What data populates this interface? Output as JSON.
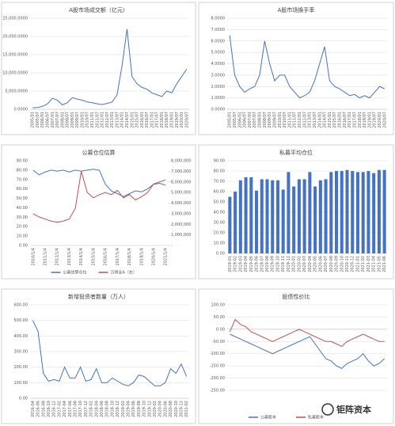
{
  "chart_data": [
    {
      "type": "line",
      "title": "A股市场成交额（亿元）",
      "color": "#4472c4",
      "categories": [
        "2005/01",
        "2005/07",
        "2006/01",
        "2006/07",
        "2007/01",
        "2007/07",
        "2008/01",
        "2008/07",
        "2009/01",
        "2009/07",
        "2010/01",
        "2010/07",
        "2011/01",
        "2011/07",
        "2012/01",
        "2012/07",
        "2013/01",
        "2013/07",
        "2014/01",
        "2014/07",
        "2015/01",
        "2015/07",
        "2016/01",
        "2016/07",
        "2017/01",
        "2017/07",
        "2018/01",
        "2018/07",
        "2019/01",
        "2019/07",
        "2020/01",
        "2020/07"
      ],
      "values": [
        400,
        500,
        800,
        1500,
        3000,
        2500,
        1200,
        1800,
        3200,
        2800,
        2500,
        2000,
        1800,
        1500,
        1300,
        1600,
        2000,
        4000,
        12000,
        22000,
        9000,
        7000,
        6000,
        5500,
        4500,
        4000,
        3500,
        5000,
        4500,
        7000,
        9000,
        11000
      ],
      "ylim": [
        0,
        25000
      ],
      "yticks": [
        {
          "value": 0,
          "label": "0.0000"
        },
        {
          "value": 5000,
          "label": "5,000.0000"
        },
        {
          "value": 10000,
          "label": "10,000.0000"
        },
        {
          "value": 15000,
          "label": "15,000.0000"
        },
        {
          "value": 20000,
          "label": "20,000.0000"
        },
        {
          "value": 25000,
          "label": "25,000.0000"
        }
      ],
      "grid": true
    },
    {
      "type": "line",
      "title": "A股市场换手率",
      "color": "#4472c4",
      "categories": [
        "2005/01",
        "2005/07",
        "2006/01",
        "2006/07",
        "2007/01",
        "2007/07",
        "2008/01",
        "2008/07",
        "2009/01",
        "2009/07",
        "2010/01",
        "2010/07",
        "2011/01",
        "2011/07",
        "2012/01",
        "2012/07",
        "2013/01",
        "2013/07",
        "2014/01",
        "2014/07",
        "2015/01",
        "2015/07",
        "2016/01",
        "2016/07",
        "2017/01",
        "2017/07",
        "2018/01",
        "2018/07",
        "2019/01",
        "2019/07",
        "2020/01",
        "2020/07"
      ],
      "values": [
        6.5,
        3,
        2,
        1.5,
        1.8,
        2,
        3,
        6,
        4,
        2.5,
        3,
        3,
        2,
        1.5,
        1,
        1.2,
        1.5,
        2.5,
        4,
        5.5,
        2.5,
        2,
        1.8,
        1.5,
        1.2,
        1.3,
        1,
        1.2,
        1,
        1.5,
        2,
        1.8
      ],
      "ylim": [
        0,
        8
      ],
      "yticks": [
        {
          "value": 0,
          "label": "0.0000"
        },
        {
          "value": 1,
          "label": "1.0000"
        },
        {
          "value": 2,
          "label": "2.0000"
        },
        {
          "value": 3,
          "label": "3.0000"
        },
        {
          "value": 4,
          "label": "4.0000"
        },
        {
          "value": 5,
          "label": "5.0000"
        },
        {
          "value": 6,
          "label": "6.0000"
        },
        {
          "value": 7,
          "label": "7.0000"
        },
        {
          "value": 8,
          "label": "8.0000"
        }
      ],
      "grid": true
    },
    {
      "type": "line",
      "title": "公募仓位估算",
      "legend": "bottom",
      "categories": [
        "2010/1/4",
        null,
        "2011/1/4",
        null,
        "2012/1/4",
        null,
        "2013/1/4",
        null,
        "2014/1/4",
        null,
        "2015/1/4",
        null,
        "2016/1/4",
        null,
        "2017/1/4",
        null,
        "2018/1/4",
        null,
        "2019/1/4",
        null,
        "2020/1/4",
        null,
        "2021/1/4"
      ],
      "series": [
        {
          "name": "公募估算仓位",
          "color": "#4472c4",
          "values": [
            80,
            75,
            78,
            80,
            79,
            80,
            78,
            80,
            79,
            80,
            81,
            80,
            65,
            58,
            55,
            52,
            55,
            58,
            57,
            60,
            65,
            66,
            64
          ]
        },
        {
          "name": "万得全A（右）",
          "color": "#c0504d",
          "axis": "y2",
          "values": [
            3000000,
            2700000,
            2500000,
            2300000,
            2200000,
            2300000,
            2500000,
            3500000,
            7000000,
            5000000,
            4500000,
            4800000,
            5000000,
            4800000,
            5200000,
            4500000,
            4800000,
            4300000,
            4600000,
            5000000,
            5800000,
            6000000,
            6200000
          ]
        }
      ],
      "ylim": [
        0,
        90
      ],
      "yticks": [
        {
          "value": 0,
          "label": "0.00"
        },
        {
          "value": 10,
          "label": "10.00"
        },
        {
          "value": 20,
          "label": "20.00"
        },
        {
          "value": 30,
          "label": "30.00"
        },
        {
          "value": 40,
          "label": "40.00"
        },
        {
          "value": 50,
          "label": "50.00"
        },
        {
          "value": 60,
          "label": "60.00"
        },
        {
          "value": 70,
          "label": "70.00"
        },
        {
          "value": 80,
          "label": "80.00"
        },
        {
          "value": 90,
          "label": "90.00"
        }
      ],
      "y2lim": [
        0,
        8000000
      ],
      "y2ticks": [
        {
          "value": 0,
          "label": "-"
        },
        {
          "value": 1000000,
          "label": "1,000,000"
        },
        {
          "value": 2000000,
          "label": "2,000,000"
        },
        {
          "value": 3000000,
          "label": "3,000,000"
        },
        {
          "value": 4000000,
          "label": "4,000,000"
        },
        {
          "value": 5000000,
          "label": "5,000,000"
        },
        {
          "value": 6000000,
          "label": "6,000,000"
        },
        {
          "value": 7000000,
          "label": "7,000,000"
        },
        {
          "value": 8000000,
          "label": "8,000,000"
        }
      ],
      "grid": false
    },
    {
      "type": "bar",
      "title": "私募平均仓位",
      "color": "#4472c4",
      "categories": [
        "2019-01",
        "2019-02",
        "2019-03",
        "2019-04",
        "2019-05",
        "2019-06",
        "2019-07",
        "2019-08",
        "2019-09",
        "2019-10",
        "2019-11",
        "2019-12",
        "2020-01",
        "2020-02",
        "2020-03",
        "2020-04",
        "2020-05",
        "2020-06",
        "2020-07",
        "2020-08",
        "2020-09",
        "2020-10",
        "2020-11",
        "2020-12",
        "2021-01",
        "2021-02",
        "2021-03",
        "2021-04",
        "2021-05",
        "2021-06"
      ],
      "values": [
        55,
        60,
        71,
        74,
        74,
        61,
        72,
        72,
        71,
        71,
        62,
        79,
        65,
        72,
        72,
        79,
        65,
        71,
        72,
        79,
        80,
        80,
        81,
        80,
        79,
        79,
        80,
        78,
        81,
        81
      ],
      "ylim": [
        0,
        90
      ],
      "yticks": [
        {
          "value": 0,
          "label": "0.00"
        },
        {
          "value": 10,
          "label": "10.00"
        },
        {
          "value": 20,
          "label": "20.00"
        },
        {
          "value": 30,
          "label": "30.00"
        },
        {
          "value": 40,
          "label": "40.00"
        },
        {
          "value": 50,
          "label": "50.00"
        },
        {
          "value": 60,
          "label": "60.00"
        },
        {
          "value": 70,
          "label": "70.00"
        },
        {
          "value": 80,
          "label": "80.00"
        },
        {
          "value": 90,
          "label": "90.00"
        }
      ],
      "grid": true
    },
    {
      "type": "line",
      "title": "新增投资者数量（万人）",
      "color": "#4472c4",
      "categories": [
        "2016-04",
        "2016-06",
        "2016-08",
        "2016-10",
        "2016-12",
        "2017-02",
        "2017-04",
        "2017-06",
        "2017-08",
        "2017-10",
        "2017-12",
        "2018-02",
        "2018-04",
        "2018-06",
        "2018-08",
        "2018-10",
        "2018-12",
        "2019-02",
        "2019-04",
        "2019-06",
        "2019-08",
        "2019-10",
        "2019-12",
        "2020-02",
        "2020-04",
        "2020-06",
        "2020-08",
        "2020-10",
        "2020-12",
        "2021-02"
      ],
      "values": [
        500,
        430,
        160,
        110,
        120,
        110,
        200,
        130,
        130,
        200,
        110,
        120,
        190,
        100,
        100,
        130,
        110,
        90,
        80,
        100,
        150,
        140,
        110,
        80,
        80,
        100,
        190,
        160,
        220,
        140
      ],
      "ylim": [
        0,
        600
      ],
      "yticks": [
        {
          "value": 0,
          "label": "0.00"
        },
        {
          "value": 100,
          "label": "100.00"
        },
        {
          "value": 200,
          "label": "200.00"
        },
        {
          "value": 300,
          "label": "300.00"
        },
        {
          "value": 400,
          "label": "400.00"
        },
        {
          "value": 500,
          "label": "500.00"
        },
        {
          "value": 600,
          "label": "600.00"
        }
      ],
      "grid": true
    },
    {
      "type": "line",
      "title": "股债性价比",
      "legend": "bottom",
      "categories": [
        null,
        null,
        null,
        null,
        null,
        null,
        null,
        null,
        null,
        null,
        null,
        null,
        null,
        null,
        null,
        null,
        null,
        null,
        null,
        null,
        null,
        null,
        null,
        null,
        null,
        null,
        null,
        null,
        null,
        null
      ],
      "series": [
        {
          "name": "公募股本",
          "color": "#4472c4",
          "values": [
            -20,
            -30,
            -40,
            -50,
            -60,
            -70,
            -80,
            -90,
            -100,
            -90,
            -80,
            -70,
            -60,
            -50,
            -40,
            -30,
            -60,
            -90,
            -120,
            -130,
            -150,
            -160,
            -140,
            -130,
            -120,
            -100,
            -130,
            -150,
            -140,
            -120
          ]
        },
        {
          "name": "私募股本",
          "color": "#c0504d",
          "values": [
            -10,
            40,
            20,
            10,
            -10,
            -20,
            -30,
            -40,
            -50,
            -40,
            -30,
            -20,
            -10,
            0,
            -10,
            -20,
            -30,
            -40,
            -50,
            -50,
            -60,
            -70,
            -50,
            -40,
            -30,
            -20,
            -30,
            -40,
            -50,
            -50
          ]
        }
      ],
      "ylim": [
        -250,
        100
      ],
      "yticks": [
        {
          "value": -250,
          "label": "-250.00"
        },
        {
          "value": -200,
          "label": "-200.00"
        },
        {
          "value": -150,
          "label": "-150.00"
        },
        {
          "value": -100,
          "label": "-100.00"
        },
        {
          "value": -50,
          "label": "-50.00"
        },
        {
          "value": 0,
          "label": "0.00"
        },
        {
          "value": 50,
          "label": "50.00"
        },
        {
          "value": 100,
          "label": "100.00"
        }
      ],
      "grid": true
    }
  ],
  "watermark": "钜阵资本"
}
